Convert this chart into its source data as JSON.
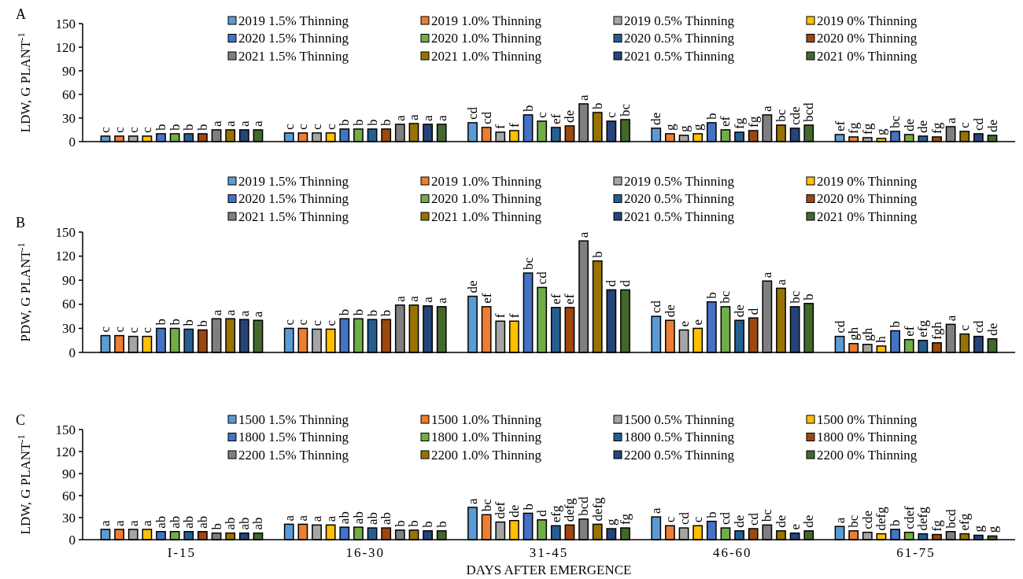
{
  "chart_data": [
    {
      "type": "bar",
      "title": "A",
      "ylabel": "LDW, G PLANT$^{-1}$",
      "categories": [
        null,
        null,
        null,
        null,
        null
      ],
      "ylim": [
        0,
        150
      ],
      "yticks": [
        0,
        30,
        60,
        90,
        120,
        150
      ],
      "tick_labels": "y",
      "legend": "top",
      "grid": false,
      "series": [
        {
          "name": "2019 1.5% Thinning",
          "color": "#5b9bd5",
          "values": [
            7,
            11,
            24,
            17,
            9
          ],
          "value_labels": [
            "c",
            "c",
            "cd",
            "de",
            "ef"
          ]
        },
        {
          "name": "2019 1.0% Thinning",
          "color": "#ed7d31",
          "values": [
            7,
            11,
            18,
            10,
            6
          ],
          "value_labels": [
            "c",
            "c",
            "cd",
            "g",
            "fg"
          ]
        },
        {
          "name": "2019 0.5% Thinning",
          "color": "#a5a5a5",
          "values": [
            7,
            11,
            12,
            8,
            5
          ],
          "value_labels": [
            "c",
            "c",
            "f",
            "g",
            "fg"
          ]
        },
        {
          "name": "2019 0% Thinning",
          "color": "#ffc000",
          "values": [
            7,
            11,
            14,
            10,
            4
          ],
          "value_labels": [
            "c",
            "c",
            "f",
            "g",
            "g"
          ]
        },
        {
          "name": "2020 1.5% Thinning",
          "color": "#4472c4",
          "values": [
            10,
            16,
            34,
            24,
            13
          ],
          "value_labels": [
            "b",
            "b",
            "b",
            "b",
            "bc"
          ]
        },
        {
          "name": "2020 1.0% Thinning",
          "color": "#70ad47",
          "values": [
            10,
            16,
            26,
            15,
            9
          ],
          "value_labels": [
            "b",
            "b",
            "c",
            "ef",
            "de"
          ]
        },
        {
          "name": "2020 0.5% Thinning",
          "color": "#255e91",
          "values": [
            10,
            16,
            18,
            12,
            7
          ],
          "value_labels": [
            "b",
            "b",
            "ef",
            "fg",
            "de"
          ]
        },
        {
          "name": "2020 0% Thinning",
          "color": "#9e480e",
          "values": [
            10,
            16,
            20,
            14,
            6
          ],
          "value_labels": [
            "b",
            "b",
            "de",
            "fg",
            "fg"
          ]
        },
        {
          "name": "2021 1.5% Thinning",
          "color": "#7f7f7f",
          "values": [
            15,
            22,
            48,
            34,
            19
          ],
          "value_labels": [
            "a",
            "a",
            "a",
            "a",
            "a"
          ]
        },
        {
          "name": "2021 1.0% Thinning",
          "color": "#997300",
          "values": [
            15,
            23,
            37,
            21,
            13
          ],
          "value_labels": [
            "a",
            "a",
            "b",
            "bc",
            "c"
          ]
        },
        {
          "name": "2021 0.5% Thinning",
          "color": "#264478",
          "values": [
            15,
            22,
            26,
            17,
            10
          ],
          "value_labels": [
            "a",
            "a",
            "c",
            "cde",
            "cd"
          ]
        },
        {
          "name": "2021 0% Thinning",
          "color": "#43682b",
          "values": [
            15,
            22,
            28,
            21,
            8
          ],
          "value_labels": [
            "a",
            "a",
            "bc",
            "bcd",
            "de"
          ]
        }
      ]
    },
    {
      "type": "bar",
      "title": "B",
      "ylabel": "PDW, G PLANT$^{-1}$",
      "categories": [
        null,
        null,
        null,
        null,
        null
      ],
      "ylim": [
        0,
        150
      ],
      "yticks": [
        0,
        30,
        60,
        90,
        120,
        150
      ],
      "tick_labels": "y",
      "legend": "top",
      "grid": false,
      "series": [
        {
          "name": "2019 1.5% Thinning",
          "color": "#5b9bd5",
          "values": [
            21,
            30,
            70,
            45,
            20
          ],
          "value_labels": [
            "c",
            "c",
            "de",
            "cd",
            "cd"
          ]
        },
        {
          "name": "2019 1.0% Thinning",
          "color": "#ed7d31",
          "values": [
            21,
            30,
            57,
            40,
            11
          ],
          "value_labels": [
            "c",
            "c",
            "ef",
            "de",
            "gh"
          ]
        },
        {
          "name": "2019 0.5% Thinning",
          "color": "#a5a5a5",
          "values": [
            20,
            29,
            39,
            28,
            10
          ],
          "value_labels": [
            "c",
            "c",
            "f",
            "e",
            "gh"
          ]
        },
        {
          "name": "2019 0% Thinning",
          "color": "#ffc000",
          "values": [
            20,
            29,
            39,
            30,
            8
          ],
          "value_labels": [
            "c",
            "c",
            "f",
            "e",
            "h"
          ]
        },
        {
          "name": "2020 1.5% Thinning",
          "color": "#4472c4",
          "values": [
            30,
            42,
            99,
            63,
            27
          ],
          "value_labels": [
            "b",
            "b",
            "bc",
            "b",
            "b"
          ]
        },
        {
          "name": "2020 1.0% Thinning",
          "color": "#70ad47",
          "values": [
            30,
            42,
            81,
            57,
            16
          ],
          "value_labels": [
            "b",
            "b",
            "cd",
            "bc",
            "ef"
          ]
        },
        {
          "name": "2020 0.5% Thinning",
          "color": "#255e91",
          "values": [
            29,
            41,
            56,
            40,
            15
          ],
          "value_labels": [
            "b",
            "b",
            "ef",
            "de",
            "efg"
          ]
        },
        {
          "name": "2020 0% Thinning",
          "color": "#9e480e",
          "values": [
            28,
            41,
            56,
            43,
            12
          ],
          "value_labels": [
            "b",
            "b",
            "ef",
            "d",
            "fgh"
          ]
        },
        {
          "name": "2021 1.5% Thinning",
          "color": "#7f7f7f",
          "values": [
            42,
            59,
            139,
            89,
            35
          ],
          "value_labels": [
            "a",
            "a",
            "a",
            "a",
            "a"
          ]
        },
        {
          "name": "2021 1.0% Thinning",
          "color": "#997300",
          "values": [
            42,
            59,
            114,
            80,
            23
          ],
          "value_labels": [
            "a",
            "a",
            "b",
            "a",
            "c"
          ]
        },
        {
          "name": "2021 0.5% Thinning",
          "color": "#264478",
          "values": [
            41,
            58,
            78,
            57,
            20
          ],
          "value_labels": [
            "a",
            "a",
            "d",
            "bc",
            "cd"
          ]
        },
        {
          "name": "2021 0% Thinning",
          "color": "#43682b",
          "values": [
            40,
            57,
            78,
            61,
            17
          ],
          "value_labels": [
            "a",
            "a",
            "d",
            "b",
            "de"
          ]
        }
      ]
    },
    {
      "type": "bar",
      "title": "C",
      "ylabel": "LDW, G PLANT$^{-1}$",
      "xlabel": "DAYS AFTER EMERGENCE",
      "categories": [
        "I-15",
        "16-30",
        "31-45",
        "46-60",
        "61-75"
      ],
      "ylim": [
        0,
        150
      ],
      "yticks": [
        0,
        30,
        60,
        90,
        120,
        150
      ],
      "legend": "top",
      "grid": false,
      "series": [
        {
          "name": "1500 1.5% Thinning",
          "color": "#5b9bd5",
          "values": [
            14,
            21,
            44,
            31,
            18
          ],
          "value_labels": [
            "a",
            "a",
            "a",
            "a",
            "a"
          ]
        },
        {
          "name": "1500 1.0% Thinning",
          "color": "#ed7d31",
          "values": [
            14,
            21,
            34,
            19,
            12
          ],
          "value_labels": [
            "a",
            "a",
            "bc",
            "c",
            "bc"
          ]
        },
        {
          "name": "1500 0.5% Thinning",
          "color": "#a5a5a5",
          "values": [
            14,
            20,
            24,
            16,
            10
          ],
          "value_labels": [
            "a",
            "a",
            "def",
            "cd",
            "cde"
          ]
        },
        {
          "name": "1500 0% Thinning",
          "color": "#ffc000",
          "values": [
            14,
            20,
            26,
            19,
            8
          ],
          "value_labels": [
            "a",
            "a",
            "de",
            "c",
            "defg"
          ]
        },
        {
          "name": "1800 1.5% Thinning",
          "color": "#4472c4",
          "values": [
            11,
            17,
            36,
            25,
            14
          ],
          "value_labels": [
            "ab",
            "ab",
            "b",
            "b",
            "b"
          ]
        },
        {
          "name": "1800 1.0% Thinning",
          "color": "#70ad47",
          "values": [
            11,
            17,
            27,
            16,
            10
          ],
          "value_labels": [
            "ab",
            "ab",
            "d",
            "cd",
            "cdef"
          ]
        },
        {
          "name": "1800 0.5% Thinning",
          "color": "#255e91",
          "values": [
            11,
            16,
            19,
            12,
            8
          ],
          "value_labels": [
            "ab",
            "ab",
            "efg",
            "de",
            "defg"
          ]
        },
        {
          "name": "1800 0% Thinning",
          "color": "#9e480e",
          "values": [
            11,
            16,
            20,
            15,
            7
          ],
          "value_labels": [
            "ab",
            "ab",
            "defg",
            "cd",
            "fg"
          ]
        },
        {
          "name": "2200 1.5% Thinning",
          "color": "#7f7f7f",
          "values": [
            9,
            13,
            28,
            20,
            11
          ],
          "value_labels": [
            "b",
            "b",
            "bcd",
            "bc",
            "bcd"
          ]
        },
        {
          "name": "2200 1.0% Thinning",
          "color": "#997300",
          "values": [
            9,
            13,
            21,
            12,
            8
          ],
          "value_labels": [
            "ab",
            "b",
            "defg",
            "de",
            "efg"
          ]
        },
        {
          "name": "2200 0.5% Thinning",
          "color": "#264478",
          "values": [
            9,
            12,
            15,
            9,
            6
          ],
          "value_labels": [
            "ab",
            "b",
            "g",
            "e",
            "g"
          ]
        },
        {
          "name": "2200 0% Thinning",
          "color": "#43682b",
          "values": [
            9,
            12,
            16,
            12,
            5
          ],
          "value_labels": [
            "ab",
            "b",
            "fg",
            "de",
            "g"
          ]
        }
      ]
    }
  ]
}
